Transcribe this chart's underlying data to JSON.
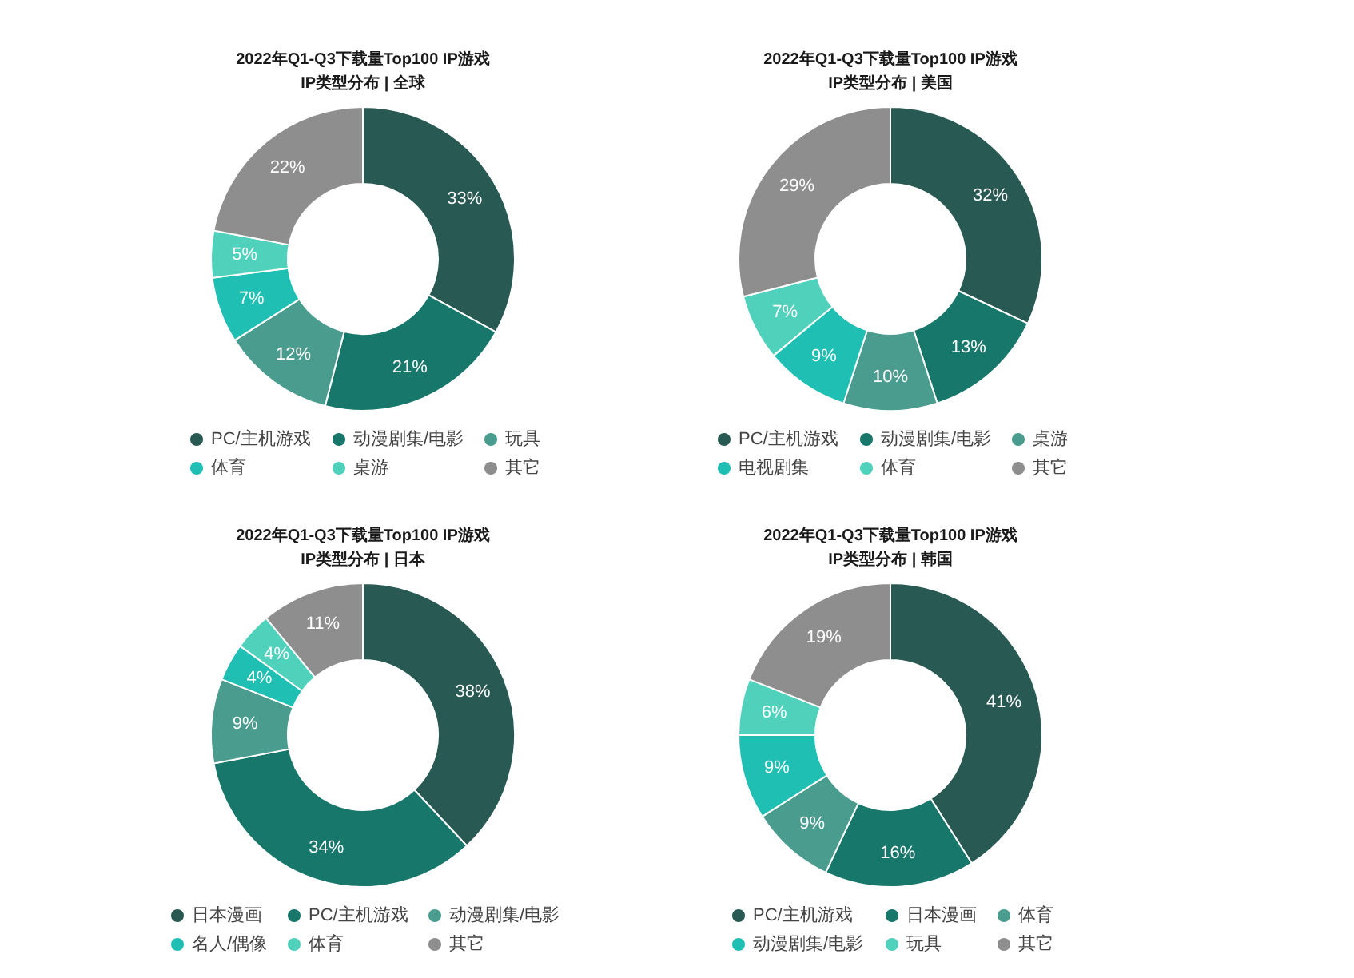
{
  "chart_data": [
    {
      "type": "donut",
      "title": "2022年Q1-Q3下载量Top100 IP游戏",
      "subtitle": "IP类型分布 | 全球",
      "categories": [
        "PC/主机游戏",
        "动漫剧集/电影",
        "玩具",
        "体育",
        "桌游",
        "其它"
      ],
      "values": [
        33,
        21,
        12,
        7,
        5,
        22
      ],
      "value_labels": [
        "33%",
        "21%",
        "12%",
        "7%",
        "5%",
        "22%"
      ],
      "colors": [
        "#285a53",
        "#17776b",
        "#4a9d8e",
        "#1fbfb3",
        "#4fd1bc",
        "#8e8e8e"
      ],
      "legend": "bottom"
    },
    {
      "type": "donut",
      "title": "2022年Q1-Q3下载量Top100 IP游戏",
      "subtitle": "IP类型分布 | 美国",
      "categories": [
        "PC/主机游戏",
        "动漫剧集/电影",
        "桌游",
        "电视剧集",
        "体育",
        "其它"
      ],
      "values": [
        32,
        13,
        10,
        9,
        7,
        29
      ],
      "value_labels": [
        "32%",
        "13%",
        "10%",
        "9%",
        "7%",
        "29%"
      ],
      "colors": [
        "#285a53",
        "#17776b",
        "#4a9d8e",
        "#1fbfb3",
        "#4fd1bc",
        "#8e8e8e"
      ],
      "legend": "bottom"
    },
    {
      "type": "donut",
      "title": "2022年Q1-Q3下载量Top100 IP游戏",
      "subtitle": "IP类型分布 | 日本",
      "categories": [
        "日本漫画",
        "PC/主机游戏",
        "动漫剧集/电影",
        "名人/偶像",
        "体育",
        "其它"
      ],
      "values": [
        38,
        34,
        9,
        4,
        4,
        11
      ],
      "value_labels": [
        "38%",
        "34%",
        "9%",
        "4%",
        "4%",
        "11%"
      ],
      "colors": [
        "#285a53",
        "#17776b",
        "#4a9d8e",
        "#1fbfb3",
        "#4fd1bc",
        "#8e8e8e"
      ],
      "legend": "bottom"
    },
    {
      "type": "donut",
      "title": "2022年Q1-Q3下载量Top100 IP游戏",
      "subtitle": "IP类型分布 | 韩国",
      "categories": [
        "PC/主机游戏",
        "日本漫画",
        "体育",
        "动漫剧集/电影",
        "玩具",
        "其它"
      ],
      "values": [
        41,
        16,
        9,
        9,
        6,
        19
      ],
      "value_labels": [
        "41%",
        "16%",
        "9%",
        "9%",
        "6%",
        "19%"
      ],
      "colors": [
        "#285a53",
        "#17776b",
        "#4a9d8e",
        "#1fbfb3",
        "#4fd1bc",
        "#8e8e8e"
      ],
      "legend": "bottom"
    }
  ]
}
